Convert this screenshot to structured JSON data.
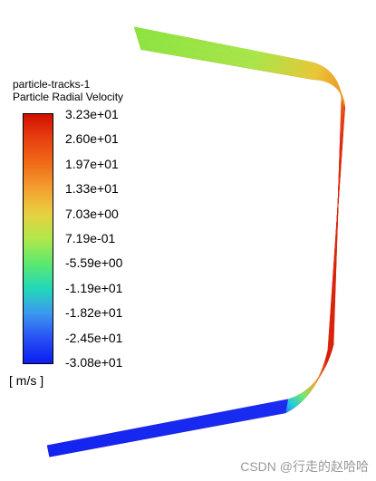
{
  "legend": {
    "title_line1": "particle-tracks-1",
    "title_line2": "Particle Radial Velocity",
    "unit": "[ m/s ]",
    "ticks": [
      "3.23e+01",
      "2.60e+01",
      "1.97e+01",
      "1.33e+01",
      "7.03e+00",
      "7.19e-01",
      "-5.59e+00",
      "-1.19e+01",
      "-1.82e+01",
      "-2.45e+01",
      "-3.08e+01"
    ],
    "colors": [
      "#d11000",
      "#e84010",
      "#f06c18",
      "#f3a030",
      "#e8d040",
      "#b0e84a",
      "#5ce870",
      "#22d8b8",
      "#3c98f0",
      "#2850f4",
      "#0a1cf0"
    ]
  },
  "scene": {
    "colors": {
      "top_segment": "#7fe64a",
      "vertical_segment": "#dd2a10",
      "bottom_segment": "#1a2af0"
    }
  },
  "watermark": "CSDN @行走的赵哈哈"
}
